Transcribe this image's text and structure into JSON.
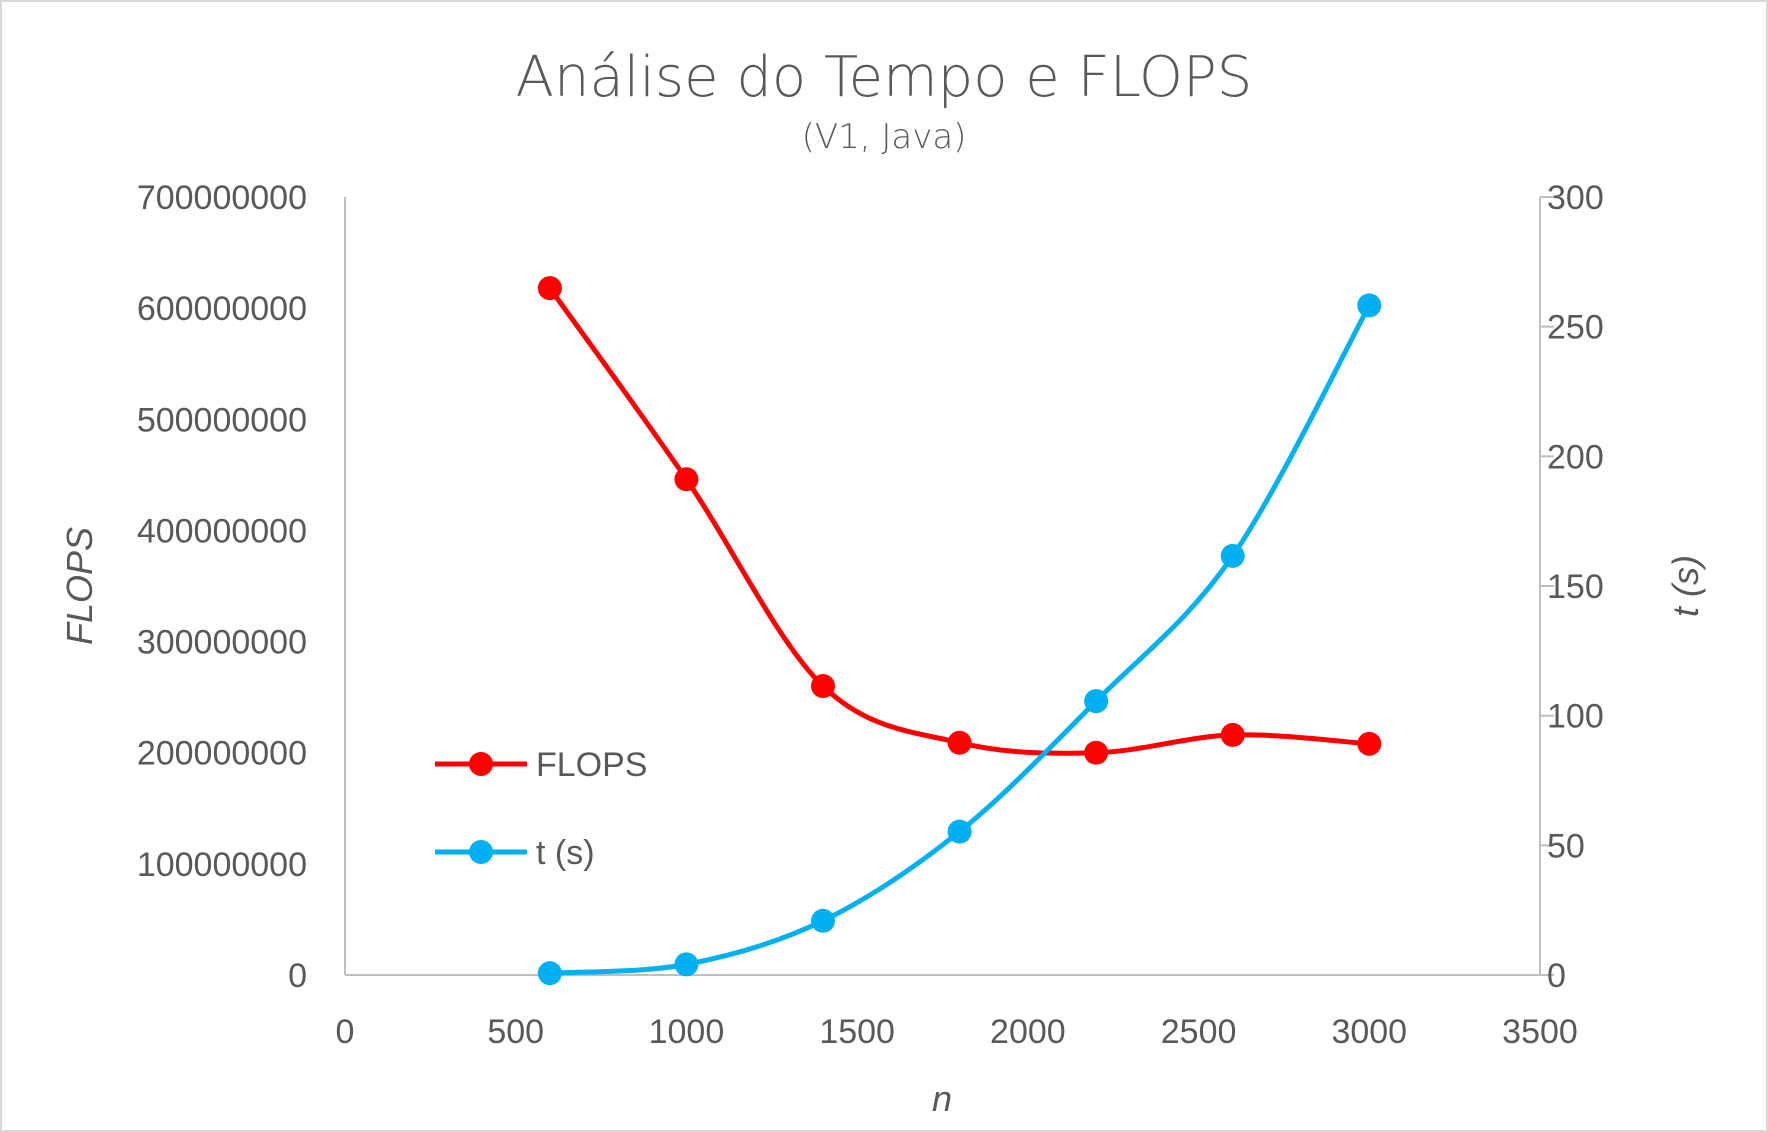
{
  "chart_data": {
    "type": "line",
    "title": "Análise do Tempo e FLOPS",
    "subtitle": "(V1, Java)",
    "xlabel": "n",
    "ylabel_left": "FLOPS",
    "ylabel_right": "t (s)",
    "xlim": [
      0,
      3500
    ],
    "x_ticks": [
      0,
      500,
      1000,
      1500,
      2000,
      2500,
      3000,
      3500
    ],
    "ylim_left": [
      0,
      700000000
    ],
    "y_left_ticks": [
      0,
      100000000,
      200000000,
      300000000,
      400000000,
      500000000,
      600000000,
      700000000
    ],
    "ylim_right": [
      0,
      300
    ],
    "y_right_ticks": [
      0,
      50,
      100,
      150,
      200,
      250,
      300
    ],
    "x": [
      600,
      1000,
      1400,
      1800,
      2200,
      2600,
      3000
    ],
    "series": [
      {
        "name": "FLOPS",
        "axis": "left",
        "color": "#ff0000",
        "values": [
          618000000,
          446000000,
          260000000,
          209000000,
          200000000,
          216000000,
          208000000
        ]
      },
      {
        "name": "t (s)",
        "axis": "right",
        "color": "#00b0f0",
        "values": [
          0.7,
          4.1,
          20.9,
          55.3,
          105.6,
          161.6,
          258.2
        ]
      }
    ],
    "grid": false,
    "legend_position": "inside-left"
  }
}
